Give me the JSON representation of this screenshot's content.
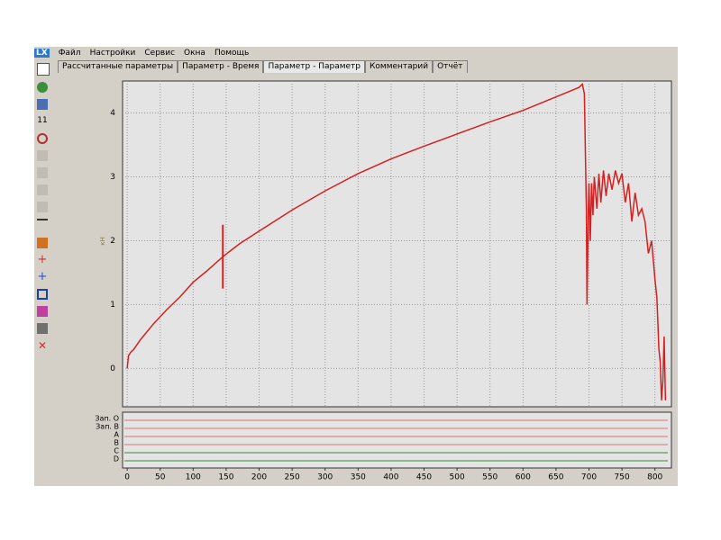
{
  "menu": [
    "Файл",
    "Настройки",
    "Сервис",
    "Окна",
    "Помощь"
  ],
  "logo": "LX",
  "tabs": [
    "Рассчитанные параметры",
    "Параметр - Время",
    "Параметр - Параметр",
    "Комментарий",
    "Отчёт"
  ],
  "active_tab": 2,
  "toolbar": {
    "label": "11"
  },
  "chart_data": {
    "type": "line",
    "y_label": "кН",
    "xlim": [
      -7,
      825
    ],
    "ylim": [
      -0.6,
      4.5
    ],
    "xticks": [
      0,
      50,
      100,
      150,
      200,
      250,
      300,
      350,
      400,
      450,
      500,
      550,
      600,
      650,
      700,
      750,
      800
    ],
    "yticks": [
      0,
      1,
      2,
      3,
      4
    ],
    "grid": true,
    "series": [
      {
        "color": "#d42020",
        "x": [
          0,
          2,
          5,
          10,
          20,
          40,
          60,
          80,
          100,
          120,
          145,
          170,
          200,
          250,
          300,
          350,
          400,
          450,
          500,
          550,
          600,
          650,
          685,
          690,
          693,
          696,
          697,
          699,
          700,
          702,
          704,
          706,
          708,
          712,
          715,
          718,
          722,
          726,
          730,
          735,
          740,
          745,
          750,
          755,
          760,
          765,
          770,
          775,
          780,
          785,
          790,
          795,
          800,
          803,
          806,
          808,
          810,
          812,
          814,
          816
        ],
        "values": [
          0,
          0.2,
          0.25,
          0.3,
          0.45,
          0.7,
          0.92,
          1.12,
          1.35,
          1.52,
          1.75,
          1.95,
          2.15,
          2.48,
          2.78,
          3.05,
          3.28,
          3.48,
          3.67,
          3.86,
          4.04,
          4.25,
          4.4,
          4.45,
          4.3,
          2.5,
          1.0,
          2.5,
          2.9,
          2.0,
          2.9,
          2.4,
          3.0,
          2.5,
          3.05,
          2.6,
          3.1,
          2.7,
          3.05,
          2.8,
          3.1,
          2.9,
          3.05,
          2.6,
          2.9,
          2.3,
          2.75,
          2.4,
          2.5,
          2.3,
          1.8,
          2.0,
          1.4,
          1.1,
          0.3,
          0.1,
          -0.5,
          -0.2,
          0.5,
          -0.5
        ]
      }
    ],
    "cursor": {
      "x": 145,
      "ymin": 1.25,
      "ymax": 2.25
    },
    "channels": [
      {
        "label": "Зап. О",
        "color": "#e07070"
      },
      {
        "label": "Зап. В",
        "color": "#e07070"
      },
      {
        "label": "A",
        "color": "#e07070"
      },
      {
        "label": "B",
        "color": "#e07070"
      },
      {
        "label": "C",
        "color": "#3a8a3a"
      },
      {
        "label": "D",
        "color": "#3a8a3a"
      }
    ]
  }
}
